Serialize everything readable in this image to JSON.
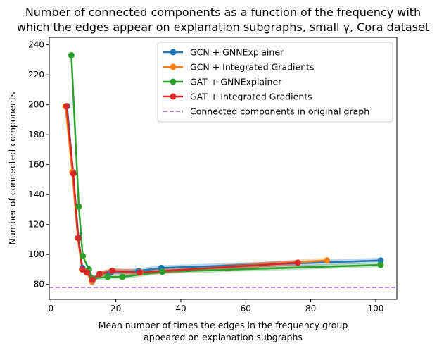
{
  "chart_data": {
    "type": "line",
    "title_lines": [
      "Number of connected components as a function of the frequency with",
      "which the edges appear on explanation subgraphs, small γ, Cora dataset"
    ],
    "xlabel_lines": [
      "Mean number of times the edges in the frequency group",
      "appeared on explanation subgraphs"
    ],
    "ylabel": "Number of connected components",
    "xlim": [
      -0.5,
      106.5
    ],
    "ylim": [
      70,
      245
    ],
    "xticks": [
      0,
      20,
      40,
      60,
      80,
      100
    ],
    "yticks": [
      80,
      100,
      120,
      140,
      160,
      180,
      200,
      220,
      240
    ],
    "legend_position": "top-right",
    "series": [
      {
        "name": "GCN + GNNExplainer",
        "color": "#1f77b4",
        "x": [
          5.0,
          6.8,
          8.5,
          9.7,
          11.2,
          12.7,
          15.0,
          18.5,
          27.0,
          34.0,
          101.5
        ],
        "y": [
          199,
          155,
          111,
          91,
          88,
          82,
          87,
          88,
          89,
          91,
          96
        ],
        "band": 1.8
      },
      {
        "name": "GCN + Integrated Gradients",
        "color": "#ff7f0e",
        "x": [
          4.5,
          6.6,
          8.3,
          9.6,
          11.0,
          12.6,
          15.2,
          18.8,
          27.5,
          85.0
        ],
        "y": [
          199,
          155,
          111,
          90,
          88,
          82,
          87,
          89,
          88,
          96
        ],
        "band": 1.8
      },
      {
        "name": "GAT + GNNExplainer",
        "color": "#2ca02c",
        "x": [
          6.3,
          8.6,
          9.8,
          11.7,
          12.8,
          17.5,
          22.0,
          34.3,
          101.5
        ],
        "y": [
          233,
          132,
          99,
          90,
          84,
          85,
          85,
          88.5,
          93
        ],
        "band": 1.5
      },
      {
        "name": "GAT + Integrated Gradients",
        "color": "#d62728",
        "x": [
          4.8,
          6.9,
          8.4,
          9.7,
          11.1,
          12.8,
          15.0,
          18.9,
          27.3,
          76.0
        ],
        "y": [
          199,
          154,
          111,
          90,
          88,
          83,
          87,
          89,
          88,
          94.5
        ],
        "band": 1.8
      }
    ],
    "reference_line": {
      "name": "Connected components in original graph",
      "y": 78,
      "color": "#9467bd",
      "style": "dashed"
    }
  }
}
